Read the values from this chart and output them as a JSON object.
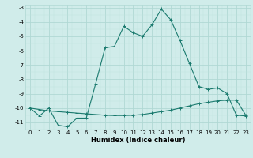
{
  "line1_x": [
    0,
    1,
    2,
    3,
    4,
    5,
    6,
    7,
    8,
    9,
    10,
    11,
    12,
    13,
    14,
    15,
    16,
    17,
    18,
    19,
    20,
    21,
    22,
    23
  ],
  "line1_y": [
    -10.0,
    -10.55,
    -10.0,
    -11.2,
    -11.3,
    -10.7,
    -10.7,
    -8.3,
    -5.8,
    -5.7,
    -4.3,
    -4.75,
    -5.0,
    -4.2,
    -3.1,
    -3.85,
    -5.3,
    -6.9,
    -8.5,
    -8.7,
    -8.6,
    -9.0,
    -10.5,
    -10.55
  ],
  "line2_x": [
    0,
    1,
    2,
    3,
    4,
    5,
    6,
    7,
    8,
    9,
    10,
    11,
    12,
    13,
    14,
    15,
    16,
    17,
    18,
    19,
    20,
    21,
    22,
    23
  ],
  "line2_y": [
    -10.0,
    -10.1,
    -10.2,
    -10.25,
    -10.3,
    -10.35,
    -10.4,
    -10.45,
    -10.5,
    -10.52,
    -10.52,
    -10.5,
    -10.45,
    -10.35,
    -10.25,
    -10.15,
    -10.0,
    -9.85,
    -9.7,
    -9.6,
    -9.5,
    -9.45,
    -9.45,
    -10.5
  ],
  "line_color": "#1a7a6e",
  "bg_color": "#d0ecea",
  "grid_color": "#b0d8d4",
  "minor_grid_color": "#c0e4e0",
  "xlabel": "Humidex (Indice chaleur)",
  "xlim": [
    -0.5,
    23.5
  ],
  "ylim": [
    -11.5,
    -2.8
  ],
  "xticks": [
    0,
    1,
    2,
    3,
    4,
    5,
    6,
    7,
    8,
    9,
    10,
    11,
    12,
    13,
    14,
    15,
    16,
    17,
    18,
    19,
    20,
    21,
    22,
    23
  ],
  "yticks": [
    -3,
    -4,
    -5,
    -6,
    -7,
    -8,
    -9,
    -10,
    -11
  ]
}
